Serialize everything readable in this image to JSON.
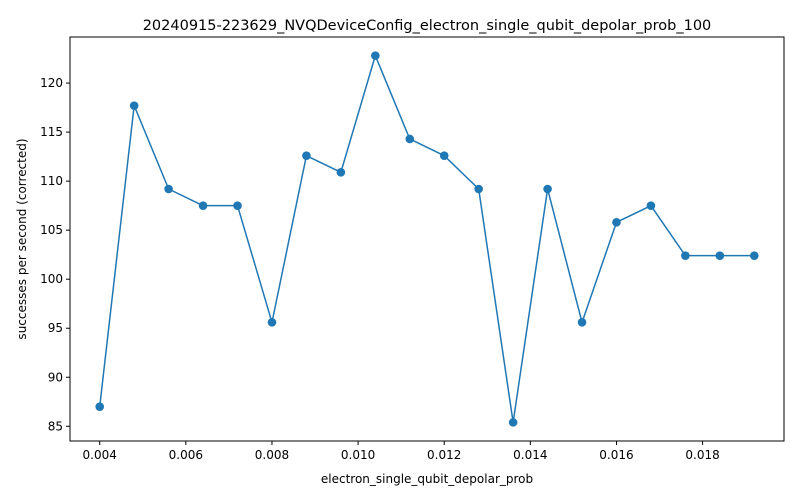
{
  "chart_data": {
    "type": "line",
    "title": "20240915-223629_NVQDeviceConfig_electron_single_qubit_depolar_prob_100",
    "xlabel": "electron_single_qubit_depolar_prob",
    "ylabel": "successes per second (corrected)",
    "xlim": [
      0.00331,
      0.01989
    ],
    "ylim": [
      83.5,
      124.7
    ],
    "x_ticks": [
      0.004,
      0.006,
      0.008,
      0.01,
      0.012,
      0.014,
      0.016,
      0.018
    ],
    "x_tick_labels": [
      "0.004",
      "0.006",
      "0.008",
      "0.010",
      "0.012",
      "0.014",
      "0.016",
      "0.018"
    ],
    "y_ticks": [
      85,
      90,
      95,
      100,
      105,
      110,
      115,
      120
    ],
    "y_tick_labels": [
      "85",
      "90",
      "95",
      "100",
      "105",
      "110",
      "115",
      "120"
    ],
    "grid": false,
    "legend": "none",
    "line_color": "#1f77b4",
    "marker": "circle",
    "series": [
      {
        "x": [
          0.004,
          0.0048,
          0.0056,
          0.0064,
          0.0072,
          0.008,
          0.0088,
          0.0096,
          0.0104,
          0.0112,
          0.012,
          0.0128,
          0.0136,
          0.0144,
          0.0152,
          0.016,
          0.0168,
          0.0176,
          0.0184,
          0.0192
        ],
        "y": [
          87.0,
          117.7,
          109.2,
          107.5,
          107.5,
          95.6,
          112.6,
          110.9,
          122.8,
          114.3,
          112.6,
          109.2,
          85.4,
          109.2,
          95.6,
          105.8,
          107.5,
          102.4,
          102.4,
          102.4
        ]
      }
    ]
  }
}
